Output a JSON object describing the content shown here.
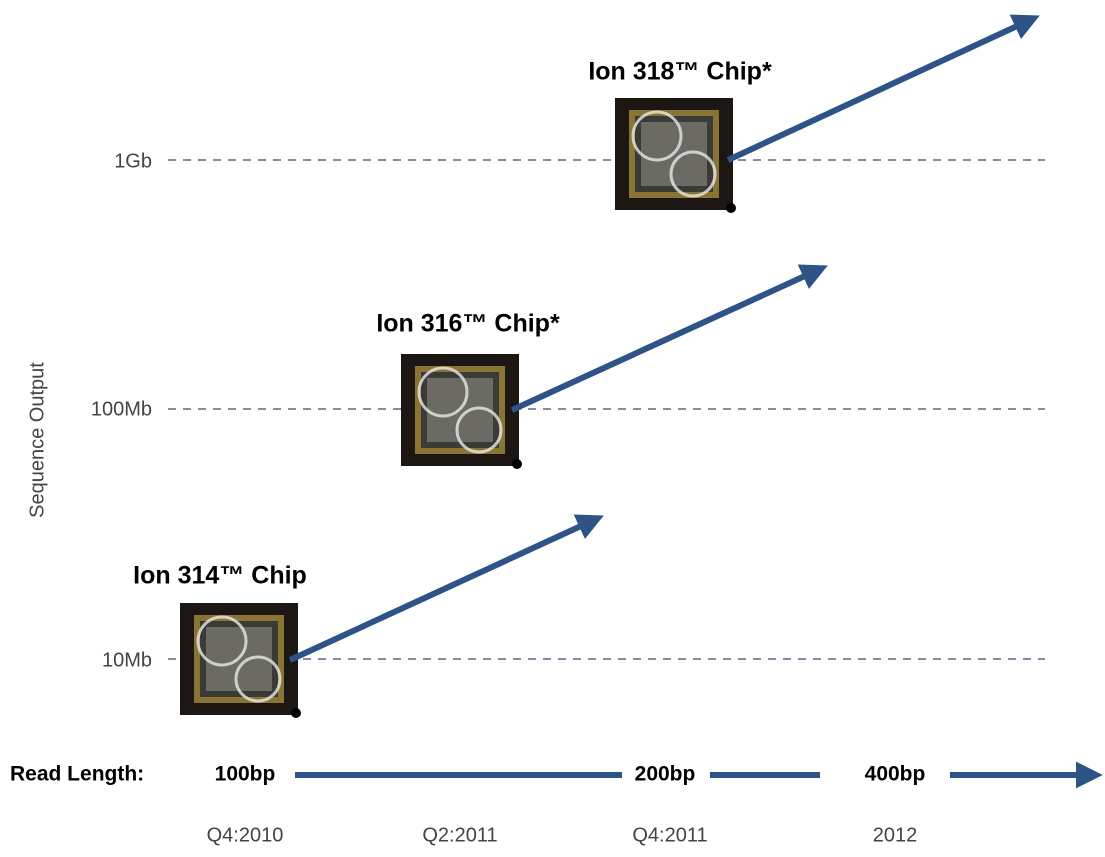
{
  "y_axis": {
    "label": "Sequence Output",
    "levels": [
      "1Gb",
      "100Mb",
      "10Mb"
    ]
  },
  "chips": [
    {
      "label": "Ion 318™ Chip*"
    },
    {
      "label": "Ion 316™ Chip*"
    },
    {
      "label": "Ion 314™ Chip"
    }
  ],
  "read_length": {
    "label": "Read Length:",
    "values": [
      "100bp",
      "200bp",
      "400bp"
    ]
  },
  "timeline": [
    "Q4:2010",
    "Q2:2011",
    "Q4:2011",
    "2012"
  ]
}
